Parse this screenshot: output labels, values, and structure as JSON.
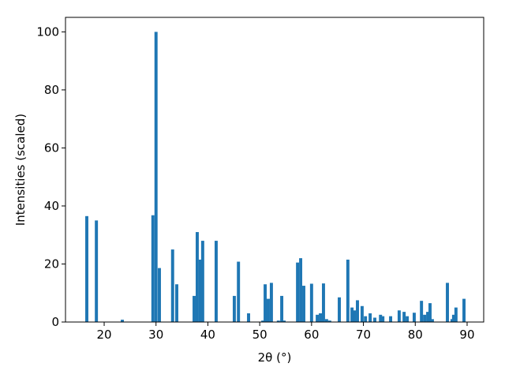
{
  "chart_data": {
    "type": "bar",
    "xlabel": "2θ (°)",
    "ylabel": "Intensities (scaled)",
    "x": [
      16.65,
      18.5,
      23.5,
      29.4,
      30.0,
      30.65,
      33.2,
      34.0,
      37.35,
      37.95,
      38.55,
      39.0,
      41.6,
      45.1,
      45.9,
      47.85,
      50.6,
      51.05,
      51.65,
      52.25,
      53.6,
      54.25,
      54.7,
      57.3,
      57.9,
      58.5,
      60.0,
      61.1,
      61.7,
      62.3,
      62.9,
      63.5,
      65.35,
      67.0,
      67.8,
      68.25,
      68.85,
      69.75,
      70.4,
      71.3,
      72.2,
      73.3,
      73.75,
      75.25,
      76.9,
      77.85,
      78.45,
      79.8,
      81.2,
      81.8,
      82.4,
      82.85,
      83.3,
      86.2,
      87.1,
      87.4,
      87.85,
      89.4
    ],
    "values": [
      36.5,
      35,
      0.8,
      36.8,
      100,
      18.6,
      25,
      13,
      9,
      31,
      21.5,
      28,
      28,
      9,
      20.8,
      3,
      0.5,
      13,
      8,
      13.5,
      0.5,
      9,
      0.5,
      20.5,
      22,
      12.5,
      13.2,
      2.5,
      3,
      13.3,
      1,
      0.5,
      8.5,
      21.5,
      5,
      4,
      7.5,
      5.5,
      2,
      3,
      1.5,
      2.5,
      2,
      2,
      4,
      3.5,
      2,
      3.2,
      7.3,
      2.5,
      3.5,
      6.5,
      1,
      13.5,
      1,
      2.5,
      5,
      8
    ],
    "color": "#1f77b4",
    "xlim": [
      12.54,
      93.2
    ],
    "ylim": [
      0,
      105
    ],
    "xticks": [
      20,
      30,
      40,
      50,
      60,
      70,
      80,
      90
    ],
    "yticks": [
      0,
      20,
      40,
      60,
      80,
      100
    ]
  }
}
